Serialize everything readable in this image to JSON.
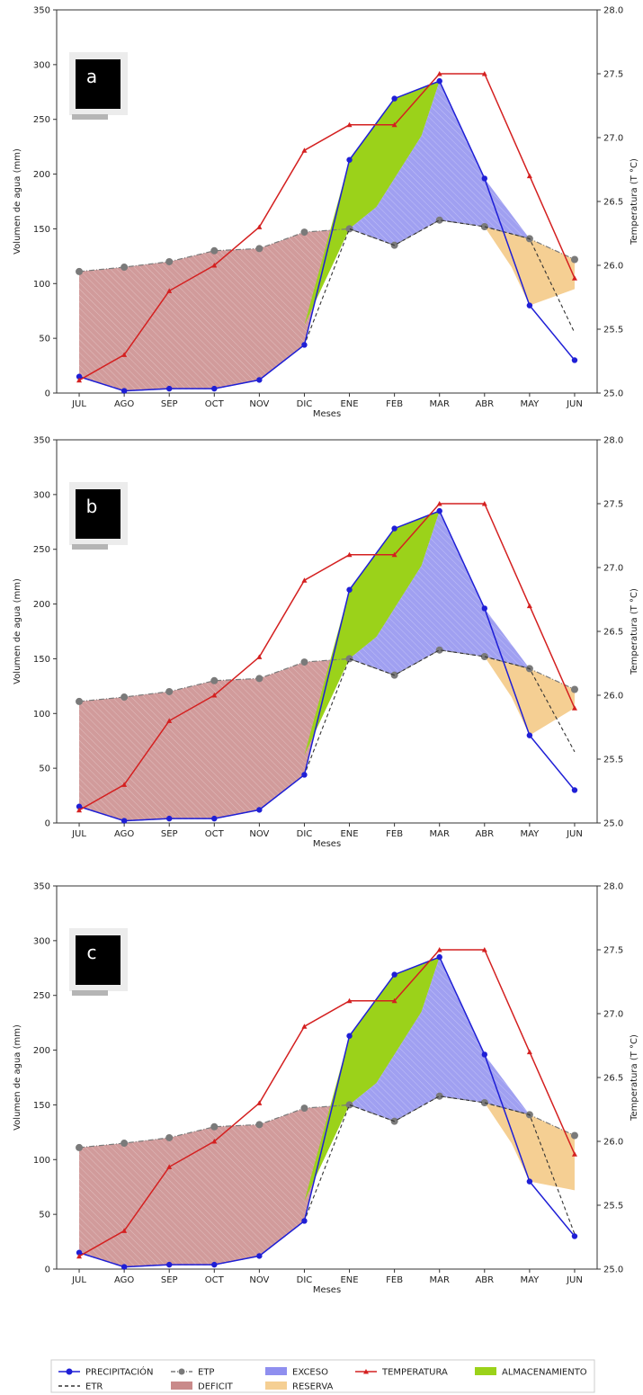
{
  "colors": {
    "precipitacion": "#1f1fd6",
    "etp": "#7a7a7a",
    "etr": "#333333",
    "temperatura": "#d42020",
    "deficit": "#c98a8a",
    "exceso": "#8f8fef",
    "almacenamiento": "#9bd21a",
    "reserva": "#f5cf93",
    "axis": "#333333"
  },
  "legend": [
    {
      "key": "precipitacion",
      "label": "PRECIPITACIÓN",
      "kind": "line-dot"
    },
    {
      "key": "etp",
      "label": "ETP",
      "kind": "dash-dot"
    },
    {
      "key": "exceso",
      "label": "EXCESO",
      "kind": "patch"
    },
    {
      "key": "temperatura",
      "label": "TEMPERATURA",
      "kind": "line-tri"
    },
    {
      "key": "almacenamiento",
      "label": "ALMACENAMIENTO",
      "kind": "patch"
    },
    {
      "key": "etr",
      "label": "ETR",
      "kind": "dash"
    },
    {
      "key": "deficit",
      "label": "DEFICIT",
      "kind": "patch"
    },
    {
      "key": "reserva",
      "label": "RESERVA",
      "kind": "patch"
    }
  ],
  "chart_data": [
    {
      "type": "line",
      "panel_label": "a",
      "categories": [
        "JUL",
        "AGO",
        "SEP",
        "OCT",
        "NOV",
        "DIC",
        "ENE",
        "FEB",
        "MAR",
        "ABR",
        "MAY",
        "JUN"
      ],
      "xlabel": "Meses",
      "ylabel": "Volumen de agua (mm)",
      "y2label": "Temperatura (T °C)",
      "ylim": [
        0,
        350
      ],
      "y2lim": [
        25.0,
        28.0
      ],
      "yticks": [
        0,
        50,
        100,
        150,
        200,
        250,
        300,
        350
      ],
      "y2ticks": [
        25.0,
        25.5,
        26.0,
        26.5,
        27.0,
        27.5,
        28.0
      ],
      "series": [
        {
          "name": "PRECIPITACIÓN",
          "values": [
            15,
            2,
            4,
            4,
            12,
            44,
            213,
            269,
            285,
            196,
            80,
            30
          ]
        },
        {
          "name": "ETP",
          "values": [
            111,
            115,
            120,
            130,
            132,
            147,
            150,
            135,
            158,
            152,
            141,
            122
          ]
        },
        {
          "name": "ETR",
          "values": [
            15,
            2,
            4,
            4,
            12,
            44,
            150,
            135,
            158,
            152,
            141,
            55
          ]
        },
        {
          "name": "TEMPERATURA",
          "axis": "right",
          "values": [
            25.1,
            25.3,
            25.8,
            26.0,
            26.3,
            26.9,
            27.1,
            27.1,
            27.5,
            27.5,
            26.7,
            25.9
          ]
        }
      ]
    },
    {
      "type": "line",
      "panel_label": "b",
      "categories": [
        "JUL",
        "AGO",
        "SEP",
        "OCT",
        "NOV",
        "DIC",
        "ENE",
        "FEB",
        "MAR",
        "ABR",
        "MAY",
        "JUN"
      ],
      "xlabel": "Meses",
      "ylabel": "Volumen de agua (mm)",
      "y2label": "Temperatura (T °C)",
      "ylim": [
        0,
        350
      ],
      "y2lim": [
        25.0,
        28.0
      ],
      "yticks": [
        0,
        50,
        100,
        150,
        200,
        250,
        300,
        350
      ],
      "y2ticks": [
        25.0,
        25.5,
        26.0,
        26.5,
        27.0,
        27.5,
        28.0
      ],
      "series": [
        {
          "name": "PRECIPITACIÓN",
          "values": [
            15,
            2,
            4,
            4,
            12,
            44,
            213,
            269,
            285,
            196,
            80,
            30
          ]
        },
        {
          "name": "ETP",
          "values": [
            111,
            115,
            120,
            130,
            132,
            147,
            150,
            135,
            158,
            152,
            141,
            122
          ]
        },
        {
          "name": "ETR",
          "values": [
            15,
            2,
            4,
            4,
            12,
            44,
            150,
            135,
            158,
            152,
            141,
            65
          ]
        },
        {
          "name": "TEMPERATURA",
          "axis": "right",
          "values": [
            25.1,
            25.3,
            25.8,
            26.0,
            26.3,
            26.9,
            27.1,
            27.1,
            27.5,
            27.5,
            26.7,
            25.9
          ]
        }
      ]
    },
    {
      "type": "line",
      "panel_label": "c",
      "categories": [
        "JUL",
        "AGO",
        "SEP",
        "OCT",
        "NOV",
        "DIC",
        "ENE",
        "FEB",
        "MAR",
        "ABR",
        "MAY",
        "JUN"
      ],
      "xlabel": "Meses",
      "ylabel": "Volumen de agua (mm)",
      "y2label": "Temperatura (T °C)",
      "ylim": [
        0,
        350
      ],
      "y2lim": [
        25.0,
        28.0
      ],
      "yticks": [
        0,
        50,
        100,
        150,
        200,
        250,
        300,
        350
      ],
      "y2ticks": [
        25.0,
        25.5,
        26.0,
        26.5,
        27.0,
        27.5,
        28.0
      ],
      "series": [
        {
          "name": "PRECIPITACIÓN",
          "values": [
            15,
            2,
            4,
            4,
            12,
            44,
            213,
            269,
            285,
            196,
            80,
            30
          ]
        },
        {
          "name": "ETP",
          "values": [
            111,
            115,
            120,
            130,
            132,
            147,
            150,
            135,
            158,
            152,
            141,
            122
          ]
        },
        {
          "name": "ETR",
          "values": [
            15,
            2,
            4,
            4,
            12,
            44,
            150,
            135,
            158,
            152,
            141,
            32
          ]
        },
        {
          "name": "TEMPERATURA",
          "axis": "right",
          "values": [
            25.1,
            25.3,
            25.8,
            26.0,
            26.3,
            26.9,
            27.1,
            27.1,
            27.5,
            27.5,
            26.7,
            25.9
          ]
        }
      ]
    }
  ]
}
